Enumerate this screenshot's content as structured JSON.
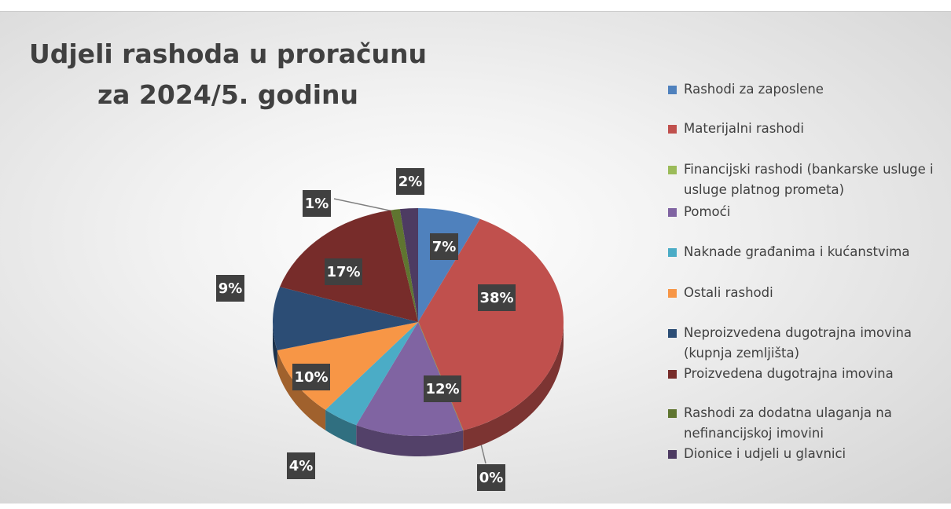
{
  "chart_data": {
    "type": "pie",
    "title": "Udjeli rashoda u proračunu za 2024/5. godinu",
    "categories": [
      "Rashodi za zaposlene",
      "Materijalni rashodi",
      "Financijski rashodi (bankarske usluge i usluge platnog prometa)",
      "Pomoći",
      "Naknade građanima i kućanstvima",
      "Ostali rashodi",
      "Neproizvedena dugotrajna imovina (kupnja zemljišta)",
      "Proizvedena dugotrajna imovina",
      "Rashodi za dodatna ulaganja na nefinancijskoj imovini",
      "Dionice i udjeli u glavnici"
    ],
    "values": [
      7,
      38,
      0,
      12,
      4,
      10,
      9,
      17,
      1,
      2
    ],
    "value_labels": [
      "7%",
      "38%",
      "0%",
      "12%",
      "4%",
      "10%",
      "9%",
      "17%",
      "1%",
      "2%"
    ],
    "colors": [
      "#4f81bd",
      "#c0504d",
      "#9bbb59",
      "#8064a2",
      "#4bacc6",
      "#f79646",
      "#2c4d75",
      "#772c2a",
      "#5f7530",
      "#4d3b62"
    ],
    "legend": "right"
  }
}
